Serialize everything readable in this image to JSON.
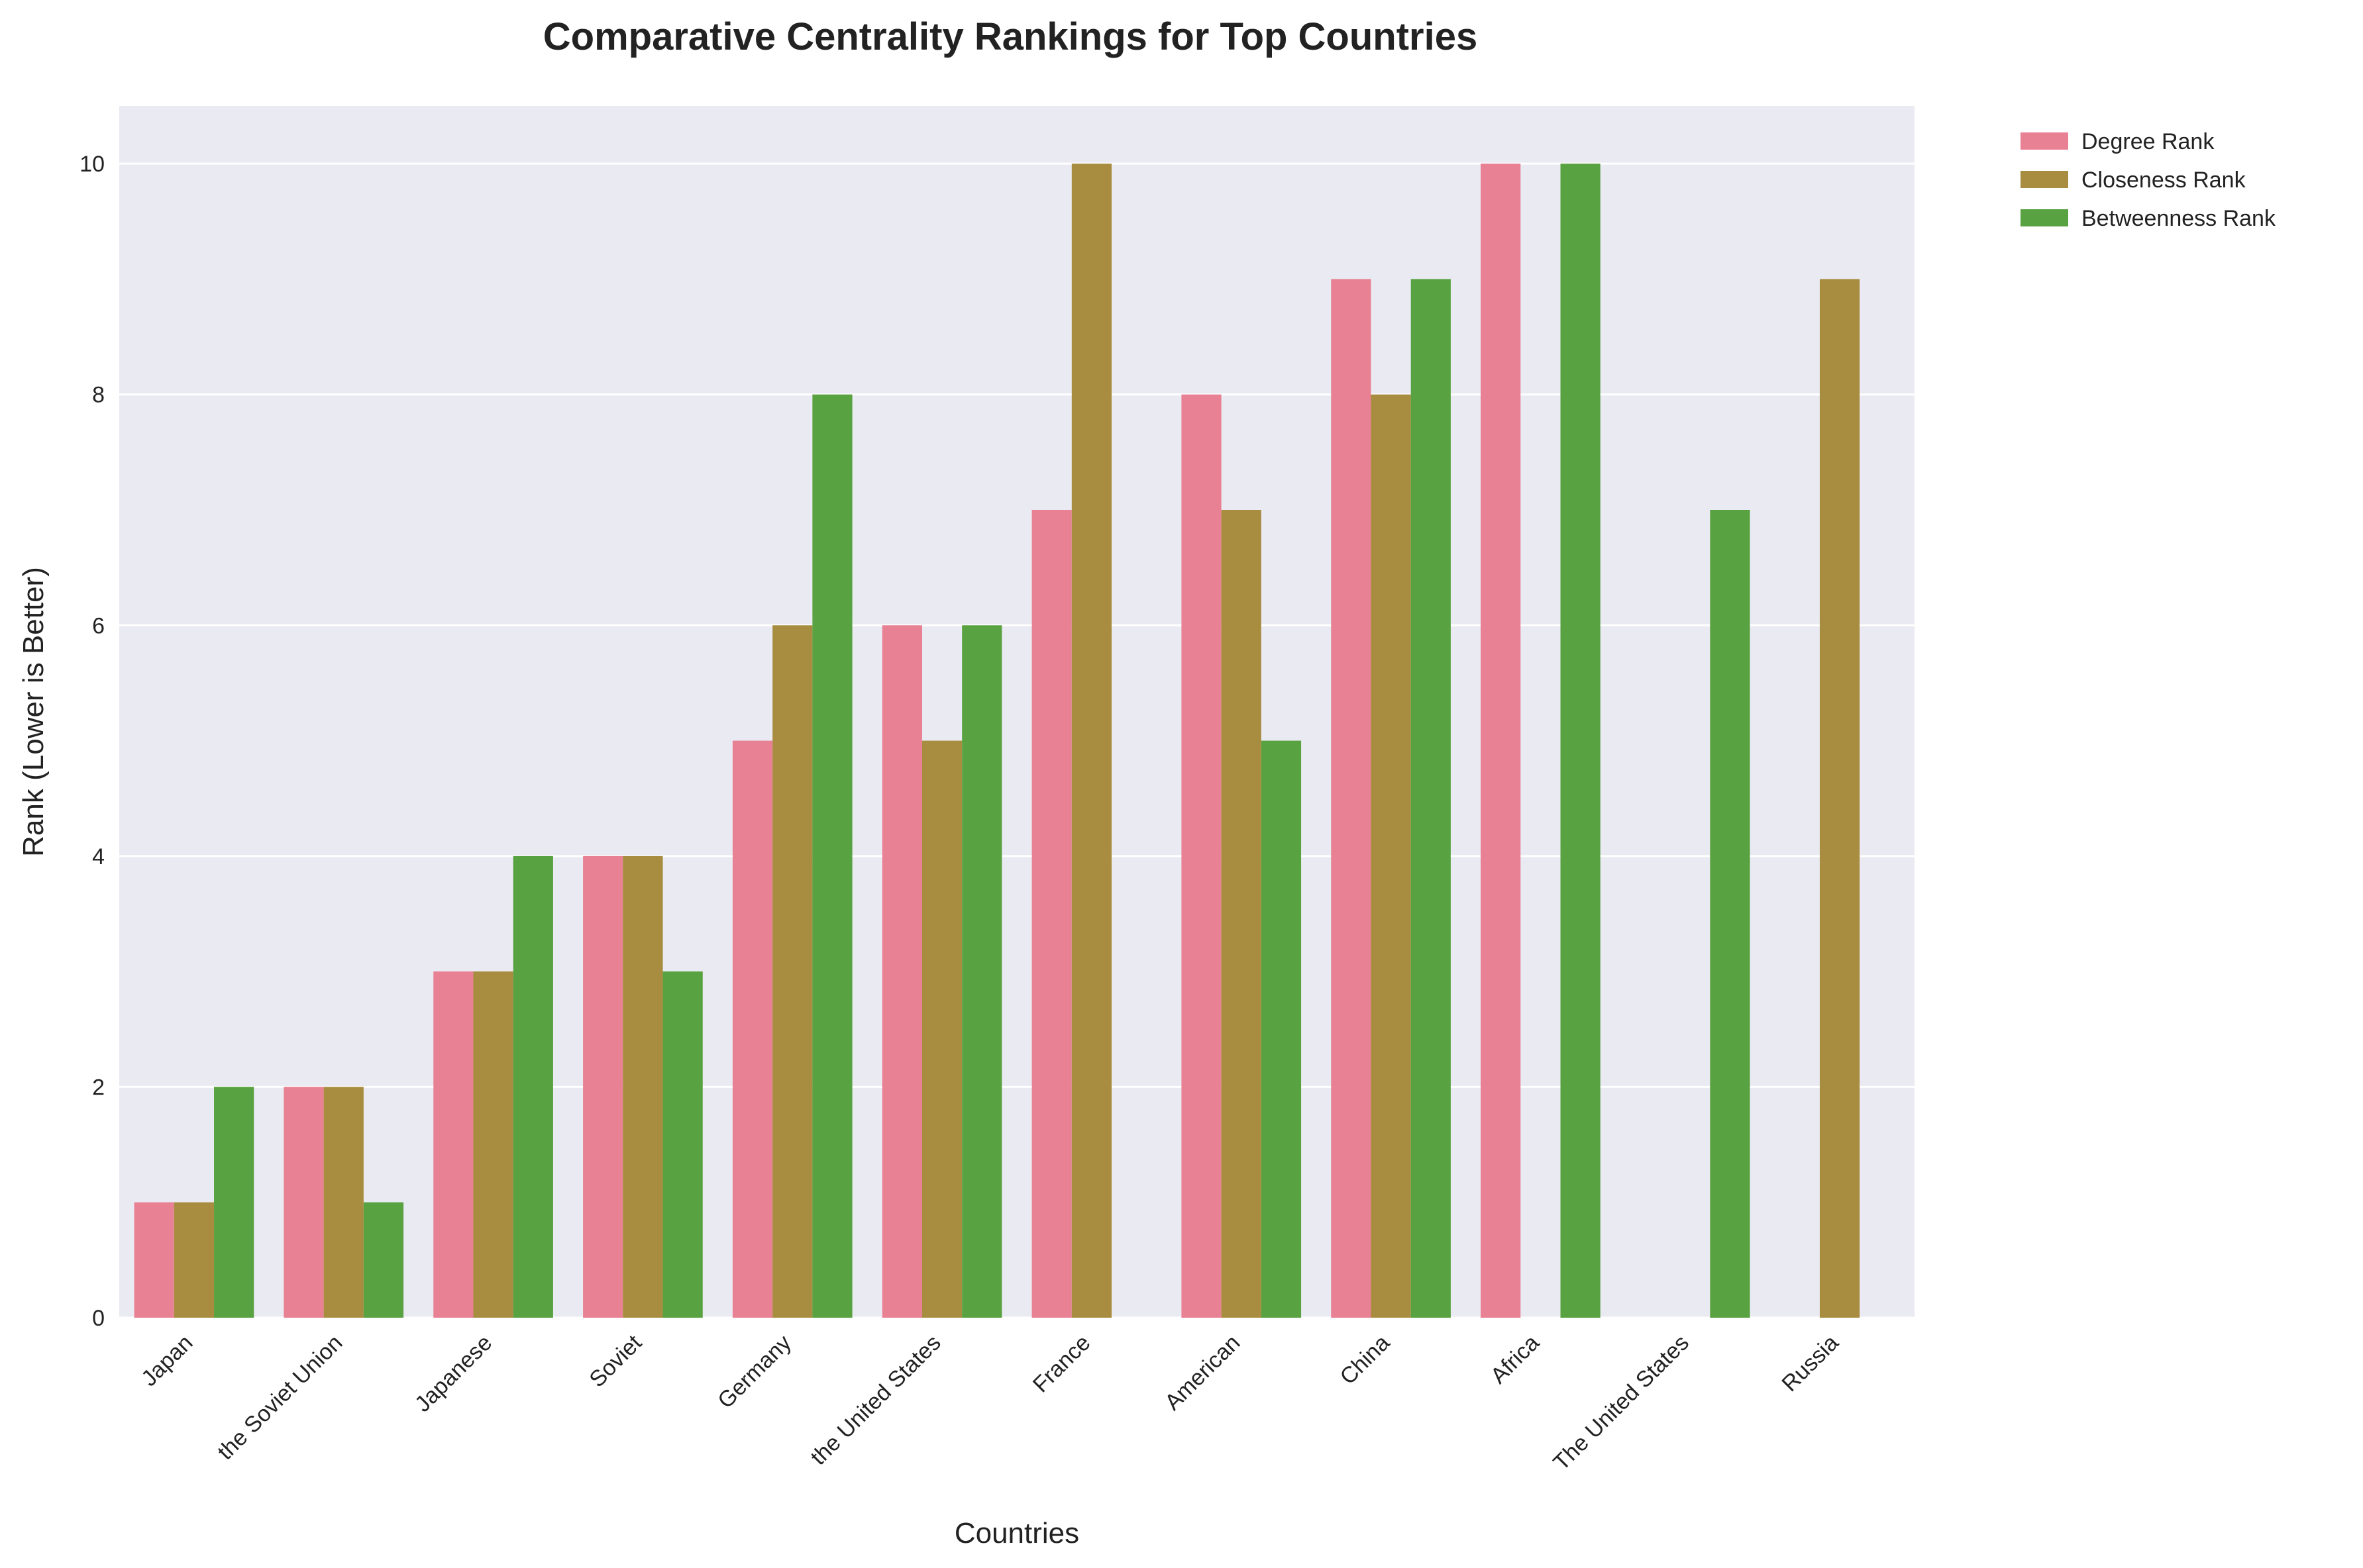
{
  "chart_data": {
    "type": "bar",
    "title": "Comparative Centrality Rankings for Top Countries",
    "xlabel": "Countries",
    "ylabel": "Rank (Lower is Better)",
    "ylim": [
      0,
      10.5
    ],
    "yticks": [
      0,
      2,
      4,
      6,
      8,
      10
    ],
    "grid": true,
    "legend_position": "outside-top-right",
    "categories": [
      "Japan",
      "the Soviet Union",
      "Japanese",
      "Soviet",
      "Germany",
      "the United States",
      "France",
      "American",
      "China",
      "Africa",
      "The United States",
      "Russia"
    ],
    "series": [
      {
        "name": "Degree Rank",
        "color": "#e88194",
        "values": [
          1,
          2,
          3,
          4,
          5,
          6,
          7,
          8,
          9,
          10,
          null,
          null
        ]
      },
      {
        "name": "Closeness Rank",
        "color": "#a88d40",
        "values": [
          1,
          2,
          3,
          4,
          6,
          5,
          10,
          7,
          8,
          null,
          null,
          9
        ]
      },
      {
        "name": "Betweenness Rank",
        "color": "#59a241",
        "values": [
          2,
          1,
          4,
          3,
          8,
          6,
          null,
          5,
          9,
          10,
          7,
          null
        ]
      }
    ],
    "colors": {
      "plot_background": "#eaeaf2",
      "grid": "#ffffff",
      "text": "#222222"
    }
  }
}
